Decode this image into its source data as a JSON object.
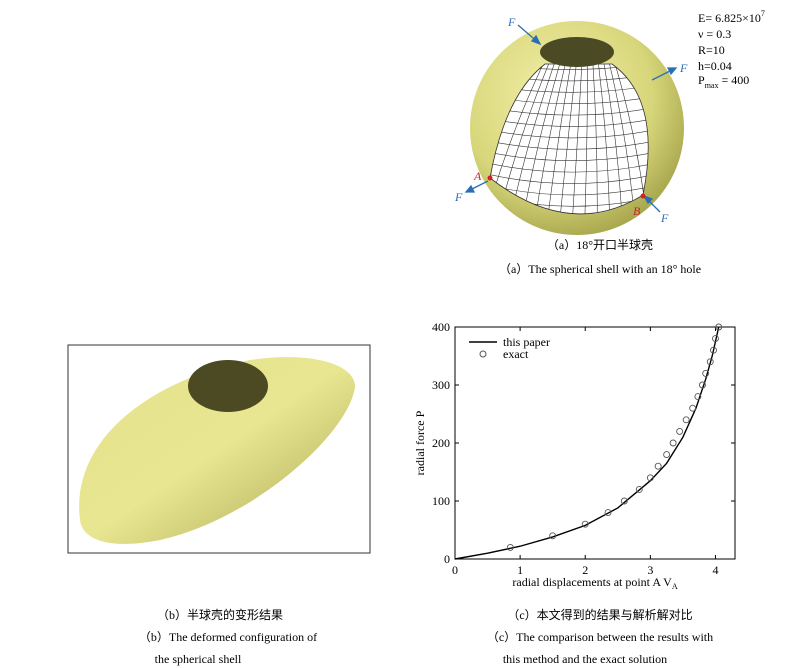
{
  "figure_a": {
    "params": [
      {
        "main": "E= 6.825×10",
        "sup": "7"
      },
      {
        "main": "ν = 0.3"
      },
      {
        "main": "R=10"
      },
      {
        "main": "h=0.04"
      },
      {
        "main": "P",
        "sub": "max",
        "tail": " = 400"
      }
    ],
    "forces": [
      "F",
      "F",
      "F",
      "F"
    ],
    "points": [
      "A",
      "B"
    ],
    "caption_cn": "（a）18°开口半球壳",
    "caption_en": "（a）The spherical shell with an 18° hole"
  },
  "figure_b": {
    "caption_cn": "（b）半球壳的变形结果",
    "caption_en": [
      "（b）The deformed configuration of",
      "the spherical shell"
    ]
  },
  "figure_c": {
    "caption_cn": "（c）本文得到的结果与解析解对比",
    "caption_en": [
      "（c）The comparison between the results with",
      "this method and the exact solution"
    ]
  },
  "chart_data": {
    "type": "line",
    "ylabel": "radial force P",
    "xlabel": "radial displacements at point A V",
    "xlabel_sub": "A",
    "xlim": [
      0,
      4.3
    ],
    "ylim": [
      0,
      400
    ],
    "xticks": [
      0,
      1,
      2,
      3,
      4
    ],
    "yticks": [
      0,
      100,
      200,
      300,
      400
    ],
    "legend": "upper left",
    "series": [
      {
        "name": "this paper",
        "color": "#000000",
        "style": "line",
        "x": [
          0,
          0.5,
          1,
          1.5,
          2,
          2.5,
          3,
          3.25,
          3.5,
          3.7,
          3.85,
          3.95,
          4.05
        ],
        "values": [
          0,
          10,
          22,
          38,
          58,
          88,
          135,
          165,
          210,
          260,
          310,
          350,
          400
        ]
      },
      {
        "name": "exact",
        "color": "#555555",
        "style": "markers",
        "x": [
          0.85,
          1.5,
          2.0,
          2.35,
          2.6,
          2.83,
          3.0,
          3.12,
          3.25,
          3.35,
          3.45,
          3.55,
          3.65,
          3.73,
          3.8,
          3.85,
          3.92,
          3.97,
          4.0,
          4.05
        ],
        "values": [
          20,
          40,
          60,
          80,
          100,
          120,
          140,
          160,
          180,
          200,
          220,
          240,
          260,
          280,
          300,
          320,
          340,
          360,
          380,
          400
        ]
      }
    ]
  }
}
